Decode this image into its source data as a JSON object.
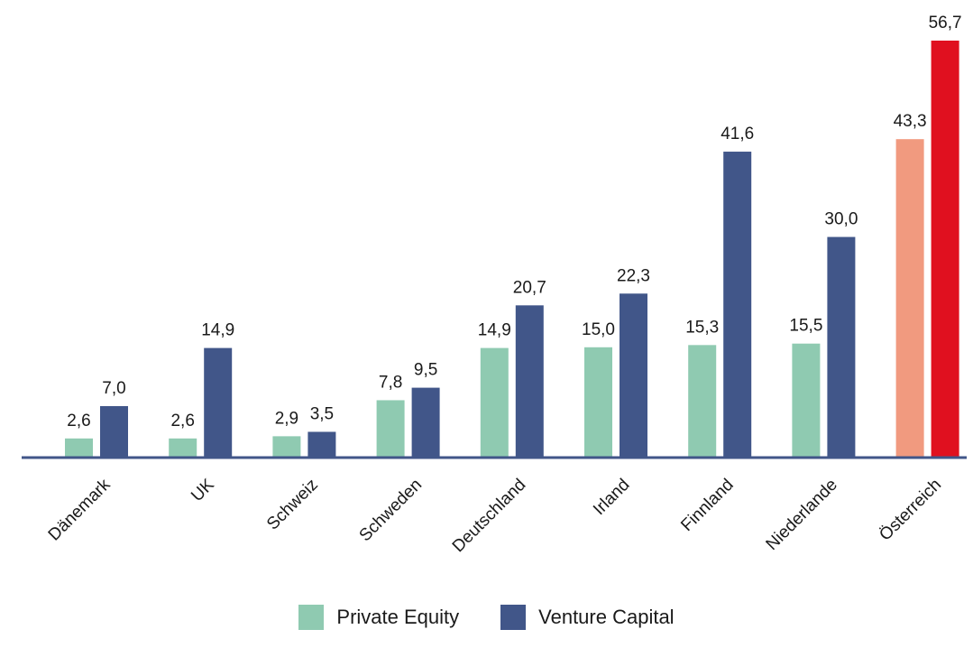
{
  "chart_data": {
    "type": "bar",
    "categories": [
      "Dänemark",
      "UK",
      "Schweiz",
      "Schweden",
      "Deutschland",
      "Irland",
      "Finnland",
      "Niederlande",
      "Österreich"
    ],
    "series": [
      {
        "name": "Private Equity",
        "values": [
          2.6,
          2.6,
          2.9,
          7.8,
          14.9,
          15.0,
          15.3,
          15.5,
          43.3
        ],
        "labels": [
          "2,6",
          "2,6",
          "2,9",
          "7,8",
          "14,9",
          "15,0",
          "15,3",
          "15,5",
          "43,3"
        ]
      },
      {
        "name": "Venture Capital",
        "values": [
          7.0,
          14.9,
          3.5,
          9.5,
          20.7,
          22.3,
          41.6,
          30.0,
          56.7
        ],
        "labels": [
          "7,0",
          "14,9",
          "3,5",
          "9,5",
          "20,7",
          "22,3",
          "41,6",
          "30,0",
          "56,7"
        ]
      }
    ],
    "title": "",
    "xlabel": "",
    "ylabel": "",
    "ylim": [
      0,
      60
    ],
    "grid": false,
    "legend_position": "bottom-center",
    "highlight_category": "Österreich"
  },
  "colors": {
    "private_equity": "#8fcab1",
    "venture_capital": "#415689",
    "highlight_private_equity": "#f19a7f",
    "highlight_venture_capital": "#e0101f",
    "axis": "#415689"
  }
}
